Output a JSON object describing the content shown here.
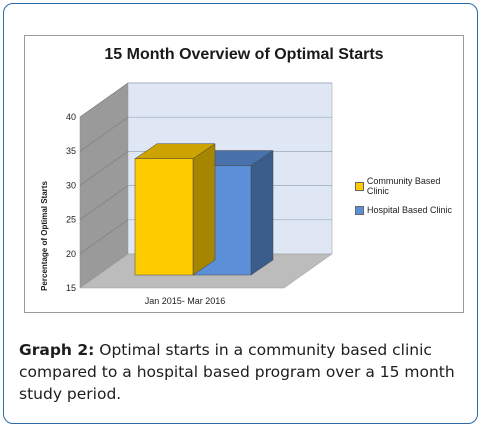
{
  "figure": {
    "caption_label": "Graph 2:",
    "caption_text": " Optimal starts in a community based clinic compared to a hospital based program over a 15 month study period."
  },
  "chart_data": {
    "type": "bar",
    "title": "15 Month Overview of Optimal Starts",
    "categories": [
      "Jan 2015- Mar 2016"
    ],
    "series": [
      {
        "name": "Community Based Clinic",
        "values": [
          32
        ],
        "color": "#ffcc00"
      },
      {
        "name": "Hospital Based Clinic",
        "values": [
          31
        ],
        "color": "#5b8fd8"
      }
    ],
    "ylabel": "Percentage of Optimal Starts",
    "xlabel": "",
    "ylim": [
      15,
      40
    ],
    "yticks": [
      15,
      20,
      25,
      30,
      35,
      40
    ],
    "grid": true,
    "legend": "right",
    "style": "3d-column",
    "colors": {
      "back_wall": "#dfe7f5",
      "side_wall": "#9a9a9a",
      "floor": "#bcbcbc"
    }
  }
}
